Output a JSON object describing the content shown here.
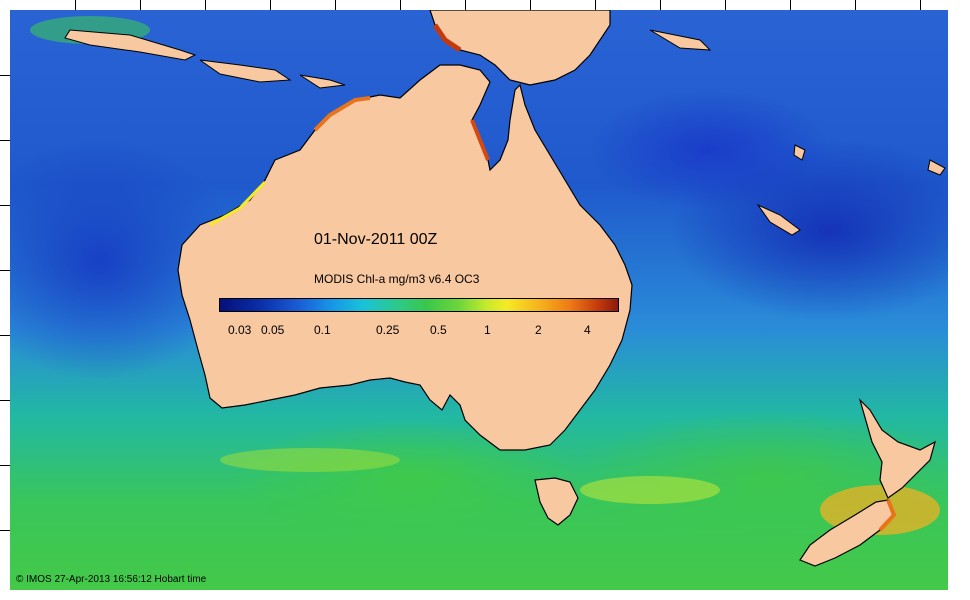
{
  "map": {
    "date_label": "01-Nov-2011 00Z",
    "colorbar_title": "MODIS Chl-a mg/m3 v6.4 OC3",
    "colorbar_ticks": [
      "0.03",
      "0.05",
      "0.1",
      "0.25",
      "0.5",
      "1",
      "2",
      "4"
    ],
    "credit": "© IMOS 27-Apr-2013 16:56:12 Hobart time",
    "colors": {
      "land": "#f8c8a0",
      "ocean_low": "#1533b8",
      "ocean_mid": "#1796e8",
      "ocean_high": "#44c948",
      "bloom": "#f5ea25",
      "coastal": "#c43a0c"
    }
  }
}
